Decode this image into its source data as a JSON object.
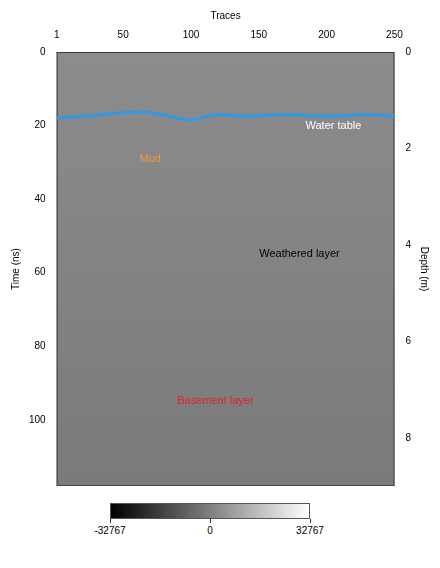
{
  "chart_data": {
    "type": "line",
    "x_label": "Traces",
    "y_label": "Time (ns)",
    "y2_label": "Depth (m)",
    "xlim": [
      1,
      250
    ],
    "xticks": [
      1,
      50,
      100,
      150,
      200,
      250
    ],
    "ylim": [
      0,
      118
    ],
    "yticks": [
      0,
      20,
      40,
      60,
      80,
      100
    ],
    "y2lim": [
      0,
      9
    ],
    "y2ticks": [
      0,
      2,
      4,
      6,
      8
    ],
    "grid": false,
    "legend": false,
    "series": [
      {
        "name": "Water table",
        "color": "#2f9ae6",
        "line_style": "solid",
        "x": [
          1,
          20,
          50,
          70,
          90,
          100,
          120,
          140,
          170,
          200,
          230,
          250
        ],
        "values": [
          18,
          17.5,
          16.5,
          16.5,
          18,
          18.5,
          17,
          17.5,
          17,
          17.5,
          17,
          17.5
        ]
      }
    ],
    "annotations": [
      {
        "text": "Water table",
        "x": 205,
        "y": 20,
        "color": "#ffffff"
      },
      {
        "text": "Mud",
        "x": 70,
        "y": 29,
        "color": "#f39a3c"
      },
      {
        "text": "Weathered layer",
        "x": 180,
        "y": 55,
        "color": "#000000"
      },
      {
        "text": "Basement layer",
        "x": 118,
        "y": 95,
        "color": "#e0202a"
      }
    ],
    "colorbar": {
      "range": [
        -32767,
        32767
      ],
      "ticks": [
        -32767,
        0,
        32767
      ],
      "colors": [
        "#000000",
        "#ffffff"
      ]
    }
  }
}
